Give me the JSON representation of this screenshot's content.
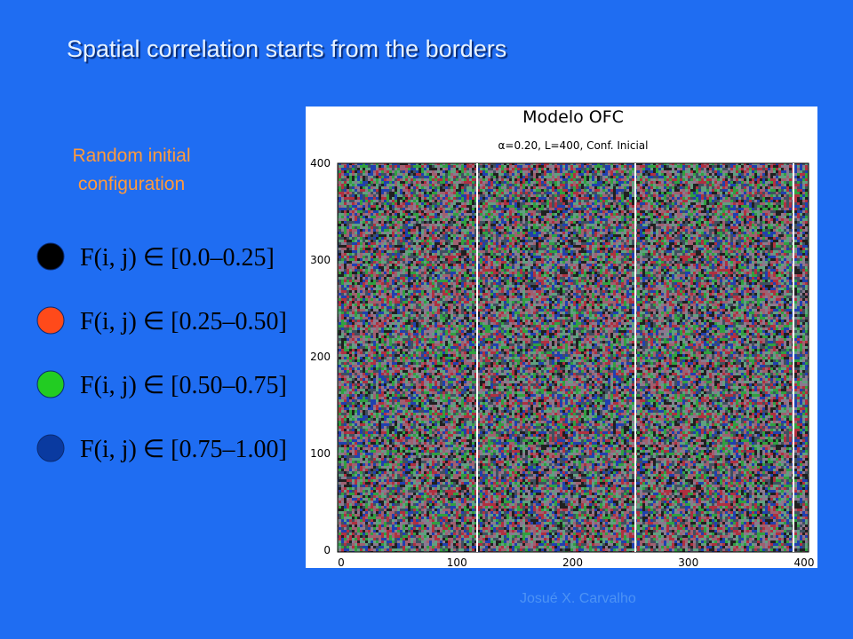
{
  "slide": {
    "title": "Spatial correlation starts from the borders",
    "subtitle": "Random initial configuration",
    "legend": [
      {
        "color": "#000000",
        "formula": "F(i, j) ∈ [0.0–0.25]"
      },
      {
        "color": "#ff4a1a",
        "formula": "F(i, j) ∈ [0.25–0.50]"
      },
      {
        "color": "#22cc22",
        "formula": "F(i, j) ∈ [0.50–0.75]"
      },
      {
        "color": "#0a3aa0",
        "formula": "F(i, j) ∈ [0.75–1.00]"
      }
    ],
    "figure": {
      "title": "Modelo OFC",
      "subtitle": "α=0.20,  L=400,  Conf. Inicial",
      "xticks": [
        "0",
        "100",
        "200",
        "300",
        "400"
      ],
      "yticks": [
        "0",
        "100",
        "200",
        "300",
        "400"
      ]
    },
    "footer": "Josué X. Carvalho"
  }
}
